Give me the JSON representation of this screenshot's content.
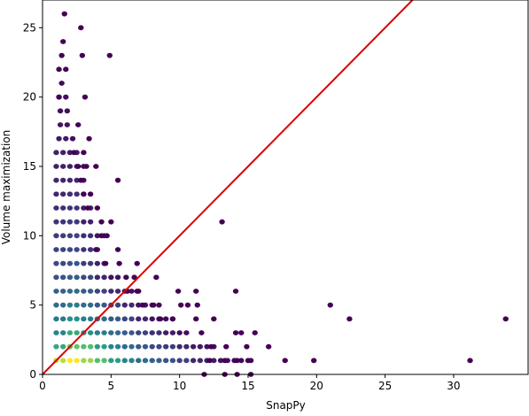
{
  "chart_data": {
    "type": "scatter",
    "title": "",
    "xlabel": "SnapPy",
    "ylabel": "Volume maximization",
    "xlim": [
      0,
      35.5
    ],
    "ylim": [
      0,
      27
    ],
    "x_ticks": [
      0,
      5,
      10,
      15,
      20,
      25,
      30
    ],
    "y_ticks": [
      0,
      5,
      10,
      15,
      20,
      25
    ],
    "grid": false,
    "colormap": [
      "#440154",
      "#3b528b",
      "#21918c",
      "#5ec962",
      "#fde725"
    ],
    "reference_line": {
      "from": [
        0,
        0
      ],
      "to": [
        27,
        27
      ],
      "color": "#dd0000"
    },
    "bands": [
      {
        "y": 1,
        "x_start": 1.0,
        "x_end": 15.0,
        "density": [
          0.9,
          1.0,
          0.85,
          0.7,
          0.55,
          0.45,
          0.35,
          0.3,
          0.25,
          0.2,
          0.12,
          0.08,
          0.05,
          0.02,
          0.0
        ]
      },
      {
        "y": 2,
        "x_start": 1.0,
        "x_end": 12.5,
        "density": [
          0.6,
          0.75,
          0.7,
          0.55,
          0.45,
          0.35,
          0.28,
          0.22,
          0.18,
          0.12,
          0.08,
          0.05,
          0.02
        ]
      },
      {
        "y": 3,
        "x_start": 1.0,
        "x_end": 10.5,
        "density": [
          0.45,
          0.6,
          0.5,
          0.42,
          0.35,
          0.28,
          0.2,
          0.14,
          0.08,
          0.04,
          0.0
        ]
      },
      {
        "y": 4,
        "x_start": 1.0,
        "x_end": 9.5,
        "density": [
          0.4,
          0.5,
          0.42,
          0.35,
          0.28,
          0.2,
          0.12,
          0.06,
          0.02,
          0.0
        ]
      },
      {
        "y": 5,
        "x_start": 1.0,
        "x_end": 8.5,
        "density": [
          0.35,
          0.42,
          0.35,
          0.28,
          0.2,
          0.12,
          0.06,
          0.02,
          0.0
        ]
      },
      {
        "y": 6,
        "x_start": 1.0,
        "x_end": 7.0,
        "density": [
          0.3,
          0.35,
          0.28,
          0.2,
          0.12,
          0.05,
          0.0
        ]
      },
      {
        "y": 7,
        "x_start": 1.0,
        "x_end": 5.5,
        "density": [
          0.25,
          0.3,
          0.22,
          0.12,
          0.05,
          0.0
        ]
      },
      {
        "y": 8,
        "x_start": 1.0,
        "x_end": 4.8,
        "density": [
          0.22,
          0.25,
          0.18,
          0.1,
          0.02
        ]
      },
      {
        "y": 9,
        "x_start": 1.0,
        "x_end": 4.2,
        "density": [
          0.2,
          0.22,
          0.15,
          0.06,
          0.0
        ]
      },
      {
        "y": 10,
        "x_start": 1.0,
        "x_end": 4.5,
        "density": [
          0.18,
          0.2,
          0.14,
          0.06,
          0.0
        ]
      },
      {
        "y": 11,
        "x_start": 1.0,
        "x_end": 3.6,
        "density": [
          0.16,
          0.18,
          0.1,
          0.02
        ]
      },
      {
        "y": 12,
        "x_start": 1.0,
        "x_end": 3.6,
        "density": [
          0.14,
          0.16,
          0.08,
          0.0
        ]
      },
      {
        "y": 13,
        "x_start": 1.0,
        "x_end": 3.4,
        "density": [
          0.12,
          0.14,
          0.06,
          0.0
        ]
      },
      {
        "y": 14,
        "x_start": 1.0,
        "x_end": 3.4,
        "density": [
          0.12,
          0.12,
          0.04,
          0.0
        ]
      },
      {
        "y": 15,
        "x_start": 1.0,
        "x_end": 3.2,
        "density": [
          0.1,
          0.1,
          0.02,
          0.0
        ]
      },
      {
        "y": 16,
        "x_start": 1.0,
        "x_end": 2.8,
        "density": [
          0.1,
          0.08,
          0.0
        ]
      },
      {
        "y": 17,
        "x_start": 1.2,
        "x_end": 2.6,
        "density": [
          0.08,
          0.04,
          0.0
        ]
      },
      {
        "y": 18,
        "x_start": 1.3,
        "x_end": 2.0,
        "density": [
          0.06,
          0.0
        ]
      },
      {
        "y": 19,
        "x_start": 1.3,
        "x_end": 2.0,
        "density": [
          0.04,
          0.0
        ]
      },
      {
        "y": 20,
        "x_start": 1.2,
        "x_end": 1.8,
        "density": [
          0.04,
          0.0
        ]
      },
      {
        "y": 21,
        "x_start": 1.4,
        "x_end": 1.8,
        "density": [
          0.02,
          0.0
        ]
      },
      {
        "y": 22,
        "x_start": 1.2,
        "x_end": 2.0,
        "density": [
          0.02,
          0.0
        ]
      }
    ],
    "points": [
      {
        "x": 1.6,
        "y": 26,
        "d": 0
      },
      {
        "x": 1.5,
        "y": 24,
        "d": 0
      },
      {
        "x": 2.8,
        "y": 25,
        "d": 0
      },
      {
        "x": 2.9,
        "y": 23,
        "d": 0
      },
      {
        "x": 4.9,
        "y": 23,
        "d": 0
      },
      {
        "x": 1.4,
        "y": 23,
        "d": 0
      },
      {
        "x": 1.2,
        "y": 20,
        "d": 0
      },
      {
        "x": 3.1,
        "y": 20,
        "d": 0
      },
      {
        "x": 2.6,
        "y": 18,
        "d": 0
      },
      {
        "x": 2.3,
        "y": 16,
        "d": 0
      },
      {
        "x": 3.4,
        "y": 17,
        "d": 0
      },
      {
        "x": 3.0,
        "y": 16,
        "d": 0
      },
      {
        "x": 2.6,
        "y": 15,
        "d": 0
      },
      {
        "x": 3.2,
        "y": 15,
        "d": 0
      },
      {
        "x": 3.9,
        "y": 15,
        "d": 0
      },
      {
        "x": 2.8,
        "y": 14,
        "d": 0
      },
      {
        "x": 5.5,
        "y": 14,
        "d": 0
      },
      {
        "x": 3.0,
        "y": 13,
        "d": 0
      },
      {
        "x": 3.5,
        "y": 13,
        "d": 0
      },
      {
        "x": 3.3,
        "y": 12,
        "d": 0
      },
      {
        "x": 4.3,
        "y": 11,
        "d": 0
      },
      {
        "x": 4.0,
        "y": 12,
        "d": 0
      },
      {
        "x": 5.0,
        "y": 11,
        "d": 0
      },
      {
        "x": 13.1,
        "y": 11,
        "d": 0
      },
      {
        "x": 4.3,
        "y": 10,
        "d": 0
      },
      {
        "x": 4.7,
        "y": 10,
        "d": 0
      },
      {
        "x": 5.5,
        "y": 9,
        "d": 0
      },
      {
        "x": 3.9,
        "y": 9,
        "d": 0
      },
      {
        "x": 4.6,
        "y": 8,
        "d": 0
      },
      {
        "x": 5.6,
        "y": 8,
        "d": 0
      },
      {
        "x": 6.9,
        "y": 8,
        "d": 0
      },
      {
        "x": 6.1,
        "y": 7,
        "d": 0
      },
      {
        "x": 6.7,
        "y": 7,
        "d": 0
      },
      {
        "x": 8.3,
        "y": 7,
        "d": 0
      },
      {
        "x": 6.2,
        "y": 6,
        "d": 0
      },
      {
        "x": 6.9,
        "y": 6,
        "d": 0
      },
      {
        "x": 9.9,
        "y": 6,
        "d": 0
      },
      {
        "x": 11.2,
        "y": 6,
        "d": 0
      },
      {
        "x": 14.1,
        "y": 6,
        "d": 0
      },
      {
        "x": 7.3,
        "y": 5,
        "d": 0
      },
      {
        "x": 8.1,
        "y": 5,
        "d": 0
      },
      {
        "x": 10.1,
        "y": 5,
        "d": 0
      },
      {
        "x": 10.6,
        "y": 5,
        "d": 0
      },
      {
        "x": 11.3,
        "y": 5,
        "d": 0
      },
      {
        "x": 21.0,
        "y": 5,
        "d": 0
      },
      {
        "x": 8.6,
        "y": 4,
        "d": 0
      },
      {
        "x": 9.5,
        "y": 4,
        "d": 0
      },
      {
        "x": 11.2,
        "y": 4,
        "d": 0
      },
      {
        "x": 12.5,
        "y": 4,
        "d": 0
      },
      {
        "x": 22.4,
        "y": 4,
        "d": 0
      },
      {
        "x": 33.8,
        "y": 4,
        "d": 0
      },
      {
        "x": 11.6,
        "y": 3,
        "d": 0
      },
      {
        "x": 14.1,
        "y": 3,
        "d": 0
      },
      {
        "x": 14.5,
        "y": 3,
        "d": 0
      },
      {
        "x": 15.5,
        "y": 3,
        "d": 0
      },
      {
        "x": 12.3,
        "y": 2,
        "d": 0
      },
      {
        "x": 13.4,
        "y": 2,
        "d": 0
      },
      {
        "x": 14.9,
        "y": 2,
        "d": 0
      },
      {
        "x": 16.5,
        "y": 2,
        "d": 0
      },
      {
        "x": 17.7,
        "y": 1,
        "d": 0
      },
      {
        "x": 19.8,
        "y": 1,
        "d": 0
      },
      {
        "x": 31.2,
        "y": 1,
        "d": 0
      },
      {
        "x": 13.3,
        "y": 1,
        "d": 0
      },
      {
        "x": 14.2,
        "y": 1,
        "d": 0
      },
      {
        "x": 15.2,
        "y": 1,
        "d": 0
      },
      {
        "x": 12.2,
        "y": 1,
        "d": 0
      },
      {
        "x": 11.8,
        "y": 0,
        "d": 0
      },
      {
        "x": 13.3,
        "y": 0,
        "d": 0
      },
      {
        "x": 14.2,
        "y": 0,
        "d": 0
      },
      {
        "x": 15.2,
        "y": 0,
        "d": 0
      }
    ]
  }
}
